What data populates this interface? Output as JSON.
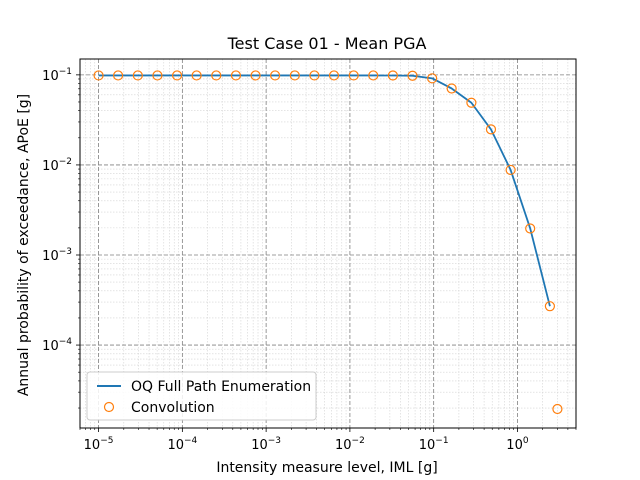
{
  "chart_data": {
    "type": "line",
    "title": "Test Case 01 - Mean PGA",
    "xlabel": "Intensity measure level, IML [g]",
    "ylabel": "Annual probability of exceedance, APoE [g]",
    "xscale": "log",
    "yscale": "log",
    "xlim": [
      6e-06,
      5
    ],
    "ylim": [
      1.2e-05,
      0.15
    ],
    "x_ticks": [
      {
        "value": 1e-05,
        "base": "10",
        "exp": "−5"
      },
      {
        "value": 0.0001,
        "base": "10",
        "exp": "−4"
      },
      {
        "value": 0.001,
        "base": "10",
        "exp": "−3"
      },
      {
        "value": 0.01,
        "base": "10",
        "exp": "−2"
      },
      {
        "value": 0.1,
        "base": "10",
        "exp": "−1"
      },
      {
        "value": 1,
        "base": "10",
        "exp": "0"
      }
    ],
    "y_ticks": [
      {
        "value": 0.0001,
        "base": "10",
        "exp": "−4"
      },
      {
        "value": 0.001,
        "base": "10",
        "exp": "−3"
      },
      {
        "value": 0.01,
        "base": "10",
        "exp": "−2"
      },
      {
        "value": 0.1,
        "base": "10",
        "exp": "−1"
      }
    ],
    "grid": true,
    "legend_position": "lower-left",
    "series": [
      {
        "name": "OQ Full Path Enumeration",
        "style": "line",
        "color": "#1f77b4",
        "x": [
          1e-05,
          1.71e-05,
          2.94e-05,
          5.04e-05,
          8.65e-05,
          0.000148,
          0.000254,
          0.000436,
          0.000748,
          0.00128,
          0.0022,
          0.00377,
          0.00646,
          0.0111,
          0.019,
          0.0326,
          0.0559,
          0.0959,
          0.164,
          0.282,
          0.483,
          0.829,
          1.42,
          2.44
        ],
        "y": [
          0.0985,
          0.0985,
          0.0985,
          0.0985,
          0.0985,
          0.0985,
          0.0985,
          0.0985,
          0.0985,
          0.0985,
          0.0985,
          0.0985,
          0.0985,
          0.0985,
          0.0985,
          0.0984,
          0.0977,
          0.0915,
          0.0706,
          0.049,
          0.0248,
          0.0088,
          0.00197,
          0.00027
        ]
      },
      {
        "name": "Convolution",
        "style": "marker-circle",
        "color": "#ff7f0e",
        "x": [
          1e-05,
          1.71e-05,
          2.94e-05,
          5.04e-05,
          8.65e-05,
          0.000148,
          0.000254,
          0.000436,
          0.000748,
          0.00128,
          0.0022,
          0.00377,
          0.00646,
          0.0111,
          0.019,
          0.0326,
          0.0559,
          0.0959,
          0.164,
          0.282,
          0.483,
          0.829,
          1.42,
          2.44,
          3.0
        ],
        "y": [
          0.0985,
          0.0985,
          0.0985,
          0.0985,
          0.0985,
          0.0985,
          0.0985,
          0.0985,
          0.0985,
          0.0985,
          0.0985,
          0.0985,
          0.0985,
          0.0985,
          0.0985,
          0.0984,
          0.0977,
          0.0915,
          0.0706,
          0.049,
          0.0248,
          0.0088,
          0.00197,
          0.00027,
          1.95e-05
        ]
      }
    ]
  }
}
